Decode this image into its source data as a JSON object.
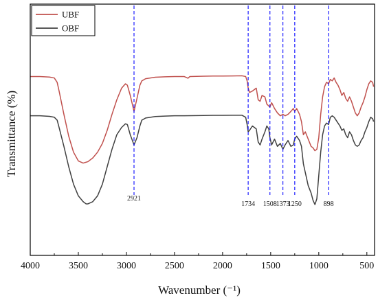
{
  "chart_data": {
    "type": "line",
    "title": "",
    "xlabel": "Wavenumber (⁻¹)",
    "ylabel": "Transmittance (%)",
    "xlim": [
      4000,
      420
    ],
    "x_reversed": true,
    "x_ticks": [
      4000,
      3500,
      3000,
      2500,
      2000,
      1500,
      1000,
      500
    ],
    "y_ticks_shown": false,
    "grid": false,
    "legend_position": "top-left",
    "series": [
      {
        "name": "UBF",
        "color": "#c0504d",
        "points": [
          [
            4000,
            88
          ],
          [
            3900,
            88
          ],
          [
            3800,
            87.6
          ],
          [
            3750,
            87
          ],
          [
            3720,
            84
          ],
          [
            3700,
            78
          ],
          [
            3650,
            62
          ],
          [
            3600,
            47
          ],
          [
            3550,
            36
          ],
          [
            3500,
            30
          ],
          [
            3450,
            28.5
          ],
          [
            3400,
            29.5
          ],
          [
            3350,
            32
          ],
          [
            3300,
            36
          ],
          [
            3250,
            42
          ],
          [
            3200,
            51
          ],
          [
            3150,
            62
          ],
          [
            3100,
            72
          ],
          [
            3050,
            80
          ],
          [
            3010,
            83
          ],
          [
            2990,
            82
          ],
          [
            2960,
            75
          ],
          [
            2921,
            64
          ],
          [
            2890,
            73
          ],
          [
            2860,
            82
          ],
          [
            2840,
            85
          ],
          [
            2800,
            86.5
          ],
          [
            2700,
            87.5
          ],
          [
            2600,
            87.8
          ],
          [
            2500,
            88
          ],
          [
            2400,
            88
          ],
          [
            2360,
            86.8
          ],
          [
            2340,
            88
          ],
          [
            2200,
            88.2
          ],
          [
            2100,
            88.3
          ],
          [
            2000,
            88.3
          ],
          [
            1900,
            88.4
          ],
          [
            1800,
            88.5
          ],
          [
            1760,
            88
          ],
          [
            1745,
            85
          ],
          [
            1734,
            80
          ],
          [
            1720,
            77
          ],
          [
            1690,
            78
          ],
          [
            1650,
            80
          ],
          [
            1630,
            72
          ],
          [
            1610,
            71
          ],
          [
            1590,
            75
          ],
          [
            1560,
            74
          ],
          [
            1540,
            69
          ],
          [
            1508,
            67
          ],
          [
            1490,
            70
          ],
          [
            1460,
            66
          ],
          [
            1430,
            63
          ],
          [
            1400,
            61
          ],
          [
            1373,
            62
          ],
          [
            1350,
            61
          ],
          [
            1320,
            62
          ],
          [
            1290,
            64
          ],
          [
            1265,
            66
          ],
          [
            1250,
            64
          ],
          [
            1230,
            66
          ],
          [
            1200,
            62
          ],
          [
            1180,
            57
          ],
          [
            1160,
            48
          ],
          [
            1140,
            50
          ],
          [
            1110,
            45
          ],
          [
            1080,
            40
          ],
          [
            1060,
            39
          ],
          [
            1040,
            37
          ],
          [
            1020,
            38
          ],
          [
            1000,
            46
          ],
          [
            980,
            62
          ],
          [
            960,
            74
          ],
          [
            940,
            81
          ],
          [
            920,
            84
          ],
          [
            898,
            83
          ],
          [
            880,
            86
          ],
          [
            860,
            85
          ],
          [
            840,
            87
          ],
          [
            820,
            84
          ],
          [
            800,
            82
          ],
          [
            780,
            79
          ],
          [
            760,
            75
          ],
          [
            740,
            77
          ],
          [
            720,
            73
          ],
          [
            700,
            71
          ],
          [
            680,
            74
          ],
          [
            660,
            71
          ],
          [
            640,
            67
          ],
          [
            620,
            63
          ],
          [
            600,
            61
          ],
          [
            580,
            63
          ],
          [
            560,
            67
          ],
          [
            540,
            70
          ],
          [
            520,
            74
          ],
          [
            500,
            79
          ],
          [
            480,
            83
          ],
          [
            460,
            85
          ],
          [
            440,
            84
          ],
          [
            430,
            81
          ]
        ]
      },
      {
        "name": "OBF",
        "color": "#404040",
        "points": [
          [
            4000,
            61
          ],
          [
            3900,
            61
          ],
          [
            3800,
            60.6
          ],
          [
            3750,
            60
          ],
          [
            3720,
            58
          ],
          [
            3700,
            53
          ],
          [
            3650,
            40
          ],
          [
            3600,
            26
          ],
          [
            3550,
            14
          ],
          [
            3500,
            6
          ],
          [
            3450,
            2
          ],
          [
            3420,
            0.5
          ],
          [
            3400,
            0.5
          ],
          [
            3350,
            2
          ],
          [
            3300,
            6
          ],
          [
            3250,
            14
          ],
          [
            3200,
            26
          ],
          [
            3150,
            38
          ],
          [
            3100,
            48
          ],
          [
            3050,
            53
          ],
          [
            3010,
            55.5
          ],
          [
            2990,
            55
          ],
          [
            2960,
            48
          ],
          [
            2921,
            41
          ],
          [
            2890,
            46
          ],
          [
            2860,
            54
          ],
          [
            2840,
            58
          ],
          [
            2800,
            59.5
          ],
          [
            2700,
            60.5
          ],
          [
            2600,
            60.8
          ],
          [
            2500,
            61
          ],
          [
            2400,
            61
          ],
          [
            2200,
            61.2
          ],
          [
            2100,
            61.3
          ],
          [
            2000,
            61.3
          ],
          [
            1900,
            61.4
          ],
          [
            1800,
            61.4
          ],
          [
            1760,
            60
          ],
          [
            1745,
            55
          ],
          [
            1734,
            50
          ],
          [
            1720,
            51
          ],
          [
            1690,
            54
          ],
          [
            1650,
            52
          ],
          [
            1630,
            43
          ],
          [
            1610,
            41
          ],
          [
            1590,
            45
          ],
          [
            1560,
            50
          ],
          [
            1540,
            54
          ],
          [
            1520,
            52
          ],
          [
            1508,
            46
          ],
          [
            1490,
            41
          ],
          [
            1460,
            45
          ],
          [
            1430,
            40
          ],
          [
            1400,
            42
          ],
          [
            1373,
            38
          ],
          [
            1350,
            41
          ],
          [
            1320,
            44
          ],
          [
            1290,
            40
          ],
          [
            1265,
            41
          ],
          [
            1250,
            45
          ],
          [
            1230,
            47
          ],
          [
            1200,
            44
          ],
          [
            1180,
            40
          ],
          [
            1160,
            28
          ],
          [
            1140,
            22
          ],
          [
            1110,
            13
          ],
          [
            1080,
            8
          ],
          [
            1060,
            3
          ],
          [
            1040,
            0
          ],
          [
            1020,
            4
          ],
          [
            1000,
            20
          ],
          [
            980,
            36
          ],
          [
            960,
            48
          ],
          [
            940,
            54
          ],
          [
            920,
            56
          ],
          [
            898,
            55
          ],
          [
            880,
            60
          ],
          [
            860,
            61
          ],
          [
            840,
            60
          ],
          [
            820,
            58
          ],
          [
            800,
            56
          ],
          [
            780,
            54
          ],
          [
            760,
            51
          ],
          [
            740,
            52
          ],
          [
            720,
            48
          ],
          [
            700,
            46
          ],
          [
            680,
            50
          ],
          [
            660,
            48
          ],
          [
            640,
            44
          ],
          [
            620,
            41
          ],
          [
            600,
            40
          ],
          [
            580,
            41
          ],
          [
            560,
            44
          ],
          [
            540,
            46
          ],
          [
            520,
            50
          ],
          [
            500,
            53
          ],
          [
            480,
            57
          ],
          [
            460,
            60
          ],
          [
            440,
            59
          ],
          [
            430,
            57
          ]
        ]
      }
    ],
    "annotations": [
      {
        "label": "2921",
        "x": 2921
      },
      {
        "label": "1734",
        "x": 1734
      },
      {
        "label": "1508",
        "x": 1508
      },
      {
        "label": "1373",
        "x": 1373
      },
      {
        "label": "1250",
        "x": 1250
      },
      {
        "label": "898",
        "x": 898
      }
    ],
    "annotation_line_color": "#1a1aff"
  }
}
